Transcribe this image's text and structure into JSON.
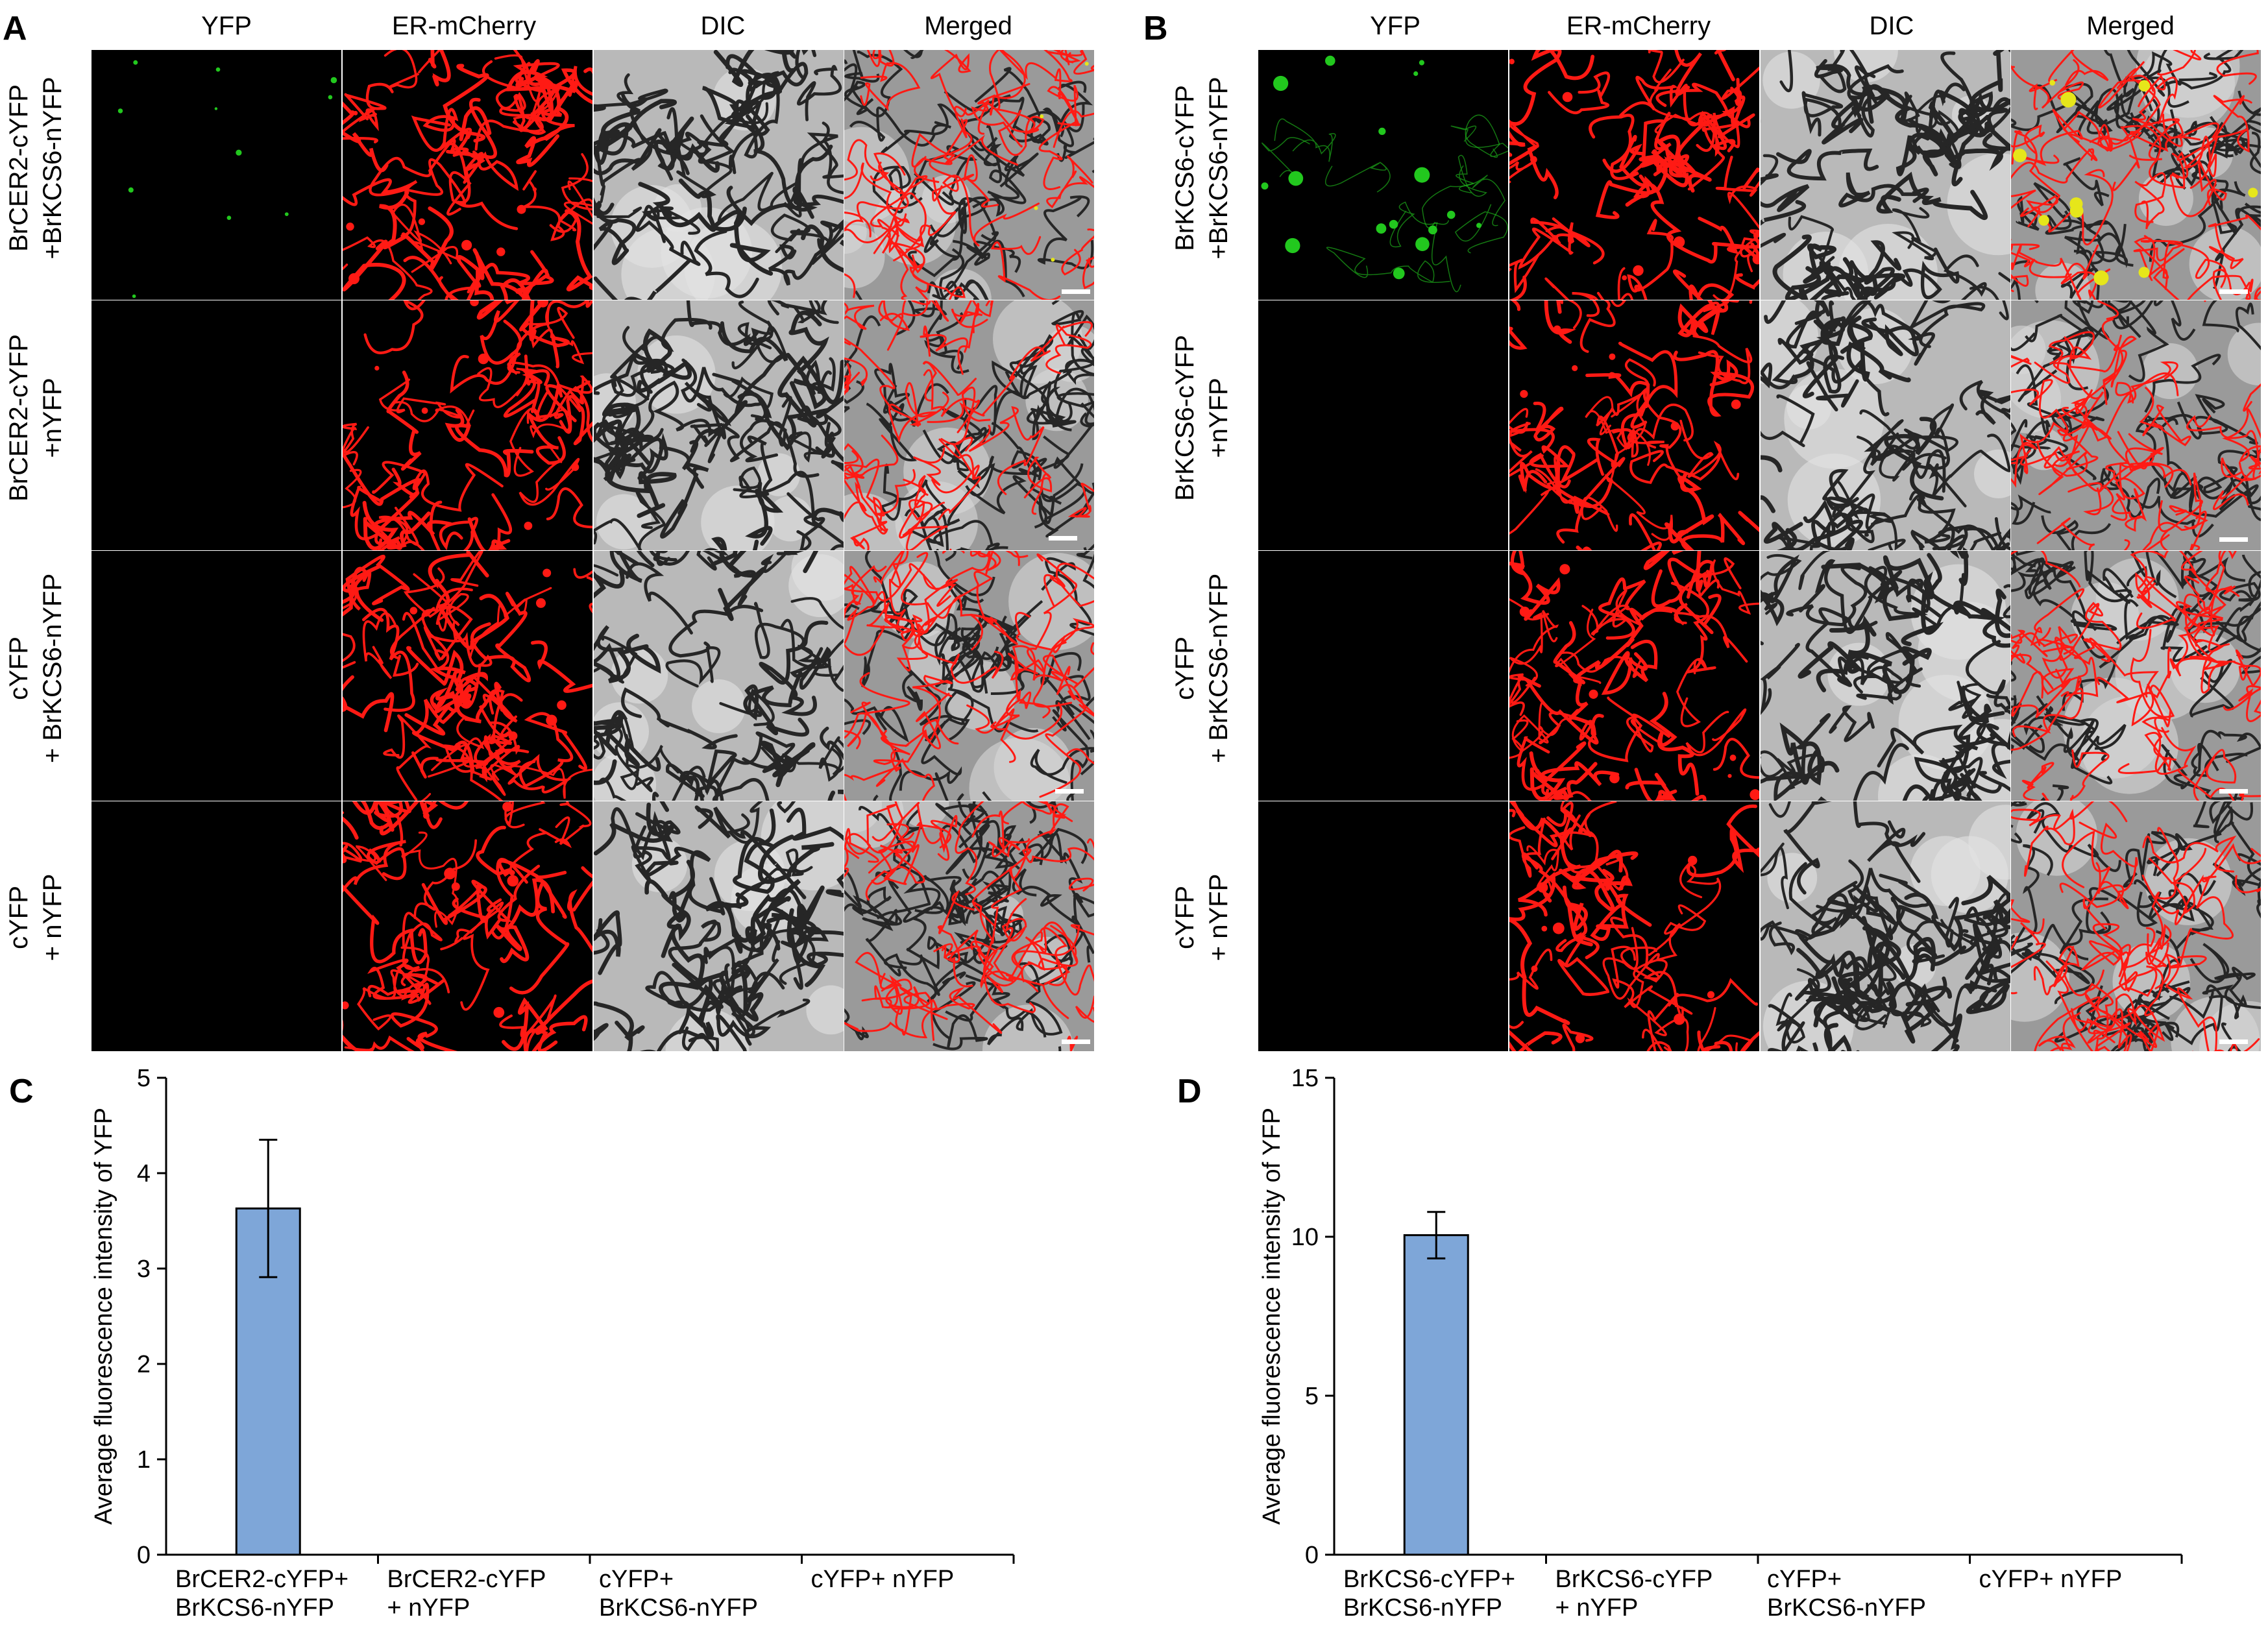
{
  "figure": {
    "panel_a": {
      "letter": "A",
      "columns": [
        "YFP",
        "ER-mCherry",
        "DIC",
        "Merged"
      ],
      "rows": [
        {
          "line1": "BrCER2-cYFP",
          "line2": "+BrKCS6-nYFP"
        },
        {
          "line1": "BrCER2-cYFP",
          "line2": "+nYFP"
        },
        {
          "line1": "cYFP",
          "line2": "+ BrKCS6-nYFP"
        },
        {
          "line1": "cYFP",
          "line2": "+ nYFP"
        }
      ]
    },
    "panel_b": {
      "letter": "B",
      "columns": [
        "YFP",
        "ER-mCherry",
        "DIC",
        "Merged"
      ],
      "rows": [
        {
          "line1": "BrKCS6-cYFP",
          "line2": "+BrKCS6-nYFP"
        },
        {
          "line1": "BrKCS6-cYFP",
          "line2": "+nYFP"
        },
        {
          "line1": "cYFP",
          "line2": "+ BrKCS6-nYFP"
        },
        {
          "line1": "cYFP",
          "line2": "+ nYFP"
        }
      ]
    },
    "panel_c": {
      "letter": "C"
    },
    "panel_d": {
      "letter": "D"
    },
    "colors": {
      "yfp": "#22c81e",
      "mcherry": "#ff1a14",
      "dic_bg": "#b9b9b9",
      "dic_line": "#262626",
      "bar": "#7ea6d8"
    }
  },
  "chart_data": [
    {
      "type": "bar",
      "panel": "C",
      "ylabel": "Average  fluorescence intensity of YFP",
      "xlabel": "",
      "ylim": [
        0,
        5
      ],
      "yticks": [
        0,
        1,
        2,
        3,
        4,
        5
      ],
      "categories": [
        {
          "line1": "BrCER2-cYFP+",
          "line2": "BrKCS6-nYFP"
        },
        {
          "line1": "BrCER2-cYFP",
          "line2": "+ nYFP"
        },
        {
          "line1": "cYFP+",
          "line2": "BrKCS6-nYFP"
        },
        {
          "line1": "cYFP+ nYFP",
          "line2": ""
        }
      ],
      "values": [
        3.63,
        0,
        0,
        0
      ],
      "errors": [
        0.72,
        0,
        0,
        0
      ]
    },
    {
      "type": "bar",
      "panel": "D",
      "ylabel": "Average  fluorescence intensity of YFP",
      "xlabel": "",
      "ylim": [
        0,
        15
      ],
      "yticks": [
        0,
        5,
        10,
        15
      ],
      "categories": [
        {
          "line1": "BrKCS6-cYFP+",
          "line2": "BrKCS6-nYFP"
        },
        {
          "line1": "BrKCS6-cYFP",
          "line2": "+ nYFP"
        },
        {
          "line1": "cYFP+",
          "line2": "BrKCS6-nYFP"
        },
        {
          "line1": "cYFP+ nYFP",
          "line2": ""
        }
      ],
      "values": [
        10.05,
        0,
        0,
        0
      ],
      "errors": [
        0.73,
        0,
        0,
        0
      ]
    }
  ]
}
